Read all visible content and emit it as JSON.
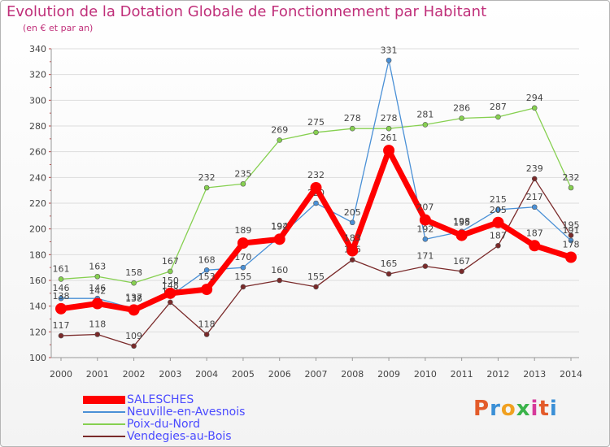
{
  "header": {
    "title": "Evolution de la Dotation Globale de Fonctionnement par Habitant",
    "subtitle": "(en € et par an)"
  },
  "logo": {
    "text": "Proxiti",
    "colors": [
      "#e35b2a",
      "#3a8fd6",
      "#f0a020",
      "#3ab34a",
      "#d63a9a",
      "#e35b2a",
      "#3a8fd6"
    ]
  },
  "colors": {
    "title": "#c0307a",
    "legend_text": "#4a4aff",
    "axis": "#999999",
    "grid": "#dddddd",
    "label": "#444444"
  },
  "chart_data": {
    "type": "line",
    "title": "Evolution de la Dotation Globale de Fonctionnement par Habitant",
    "subtitle": "(en € et par an)",
    "xlabel": "",
    "ylabel": "",
    "x": [
      "2000",
      "2001",
      "2002",
      "2003",
      "2004",
      "2005",
      "2006",
      "2007",
      "2008",
      "2009",
      "2010",
      "2011",
      "2012",
      "2013",
      "2014"
    ],
    "ylim": [
      100,
      340
    ],
    "yticks": [
      100,
      120,
      140,
      160,
      180,
      200,
      220,
      240,
      260,
      280,
      300,
      320,
      340
    ],
    "grid": "horizontal",
    "legend_position": "bottom-left",
    "series": [
      {
        "name": "Vendegies-au-Bois",
        "color": "#7a2a2a",
        "values": [
          117,
          118,
          109,
          143,
          118,
          155,
          160,
          155,
          176,
          165,
          171,
          167,
          187,
          239,
          195
        ],
        "labels": [
          "117",
          "118",
          "109",
          "143",
          "118",
          "155",
          "160",
          "155",
          "176",
          "165",
          "171",
          "167",
          "187",
          "239",
          "195"
        ]
      },
      {
        "name": "Poix-du-Nord",
        "color": "#86d050",
        "values": [
          161,
          163,
          158,
          167,
          232,
          235,
          269,
          275,
          278,
          278,
          281,
          286,
          287,
          294,
          232
        ],
        "labels": [
          "161",
          "163",
          "158",
          "167",
          "232",
          "235",
          "269",
          "275",
          "278",
          "278",
          "281",
          "286",
          "287",
          "294",
          "232"
        ]
      },
      {
        "name": "Neuville-en-Avesnois",
        "color": "#4a90d6",
        "values": [
          146,
          146,
          138,
          148,
          168,
          170,
          194,
          220,
          205,
          331,
          192,
          198,
          215,
          217,
          191
        ],
        "labels": [
          "146",
          "146",
          "138",
          "148",
          "168",
          "170",
          "194",
          "220",
          "205",
          "331",
          "192",
          "198",
          "215",
          "217",
          "191"
        ]
      },
      {
        "name": "SALESCHES",
        "color": "#ff0000",
        "values": [
          138,
          142,
          137,
          150,
          153,
          189,
          192,
          232,
          183,
          261,
          207,
          195,
          205,
          187,
          178
        ],
        "labels": [
          "138",
          "142",
          "137",
          "150",
          "153",
          "189",
          "192",
          "232",
          "183",
          "261",
          "207",
          "195",
          "205",
          "187",
          "178"
        ]
      }
    ]
  },
  "legend": [
    {
      "label": "SALESCHES",
      "color": "#ff0000",
      "thick": true
    },
    {
      "label": "Neuville-en-Avesnois",
      "color": "#4a90d6",
      "thick": false
    },
    {
      "label": "Poix-du-Nord",
      "color": "#86d050",
      "thick": false
    },
    {
      "label": "Vendegies-au-Bois",
      "color": "#7a2a2a",
      "thick": false
    }
  ]
}
